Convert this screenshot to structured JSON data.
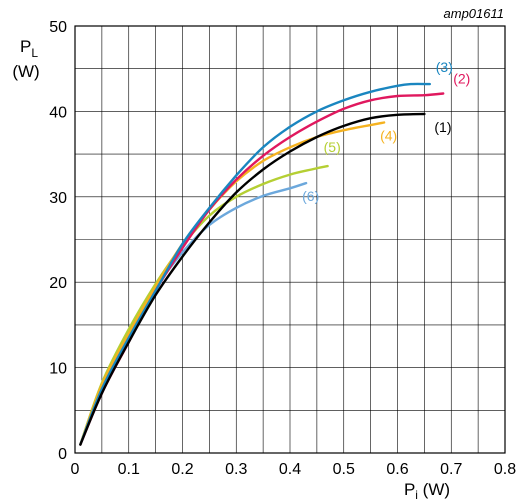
{
  "chart_data": {
    "type": "line",
    "reference": "amp01611",
    "ylabel_main": "P",
    "ylabel_sub": "L",
    "ylabel_unit": "(W)",
    "xlabel_main": "P",
    "xlabel_sub": "i",
    "xlabel_unit": " (W)",
    "xlim": [
      0,
      0.8
    ],
    "ylim": [
      0,
      50
    ],
    "grid": true,
    "x_ticks": [
      "0",
      "0.1",
      "0.2",
      "0.3",
      "0.4",
      "0.5",
      "0.6",
      "0.7",
      "0.8"
    ],
    "y_ticks": [
      "0",
      "10",
      "20",
      "30",
      "40",
      "50"
    ],
    "series": [
      {
        "name": "(1)",
        "color": "#000000",
        "x": [
          0.01,
          0.05,
          0.1,
          0.15,
          0.2,
          0.25,
          0.3,
          0.35,
          0.4,
          0.45,
          0.5,
          0.55,
          0.6,
          0.65
        ],
        "y": [
          1,
          7,
          13,
          18.5,
          23,
          27,
          30.5,
          33.2,
          35.3,
          37,
          38.3,
          39.2,
          39.6,
          39.7
        ]
      },
      {
        "name": "(2)",
        "color": "#e0185e",
        "x": [
          0.01,
          0.05,
          0.1,
          0.15,
          0.2,
          0.25,
          0.3,
          0.35,
          0.4,
          0.45,
          0.5,
          0.55,
          0.6,
          0.65,
          0.685
        ],
        "y": [
          1,
          7,
          13,
          19,
          24,
          28.5,
          32,
          34.8,
          37,
          38.8,
          40.3,
          41.3,
          41.8,
          41.9,
          42.1
        ]
      },
      {
        "name": "(3)",
        "color": "#1a86c0",
        "x": [
          0.01,
          0.05,
          0.1,
          0.15,
          0.2,
          0.25,
          0.3,
          0.35,
          0.4,
          0.45,
          0.5,
          0.55,
          0.6,
          0.625,
          0.66
        ],
        "y": [
          1,
          7.5,
          13.5,
          19,
          24.5,
          28.7,
          32.5,
          35.8,
          38.2,
          40,
          41.3,
          42.3,
          43,
          43.2,
          43.2
        ]
      },
      {
        "name": "(4)",
        "color": "#f5b21f",
        "x": [
          0.01,
          0.05,
          0.1,
          0.15,
          0.2,
          0.25,
          0.3,
          0.35,
          0.4,
          0.45,
          0.5,
          0.55,
          0.575
        ],
        "y": [
          1,
          8,
          14,
          19.5,
          24.5,
          28.5,
          31.8,
          34.2,
          35.8,
          37,
          37.8,
          38.4,
          38.7
        ]
      },
      {
        "name": "(5)",
        "color": "#b5cf33",
        "x": [
          0.01,
          0.05,
          0.1,
          0.15,
          0.2,
          0.25,
          0.3,
          0.35,
          0.4,
          0.44,
          0.47
        ],
        "y": [
          1,
          8.2,
          14.5,
          19.8,
          24.3,
          27.8,
          30,
          31.5,
          32.6,
          33.2,
          33.6
        ]
      },
      {
        "name": "(6)",
        "color": "#6ca8dc",
        "x": [
          0.01,
          0.05,
          0.1,
          0.15,
          0.2,
          0.25,
          0.3,
          0.35,
          0.4,
          0.43
        ],
        "y": [
          1,
          8,
          14,
          19.3,
          23.5,
          26.7,
          28.7,
          30.1,
          31,
          31.6
        ]
      }
    ]
  }
}
